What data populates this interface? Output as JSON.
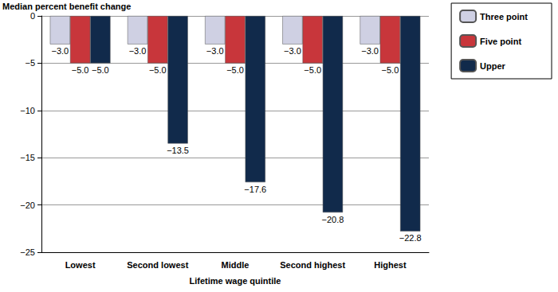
{
  "chart_data": {
    "type": "bar",
    "y_label": "Median percent benefit change",
    "x_label": "Lifetime wage quintile",
    "categories": [
      "Lowest",
      "Second lowest",
      "Middle",
      "Second highest",
      "Highest"
    ],
    "series": [
      {
        "name": "Three point",
        "color": "#cfd0e3",
        "values": [
          -3.0,
          -3.0,
          -3.0,
          -3.0,
          -3.0
        ],
        "value_labels": [
          "−3.0",
          "−3.0",
          "−3.0",
          "−3.0",
          "−3.0"
        ]
      },
      {
        "name": "Five point",
        "color": "#c8363b",
        "values": [
          -5.0,
          -5.0,
          -5.0,
          -5.0,
          -5.0
        ],
        "value_labels": [
          "−5.0",
          "−5.0",
          "−5.0",
          "−5.0",
          "−5.0"
        ]
      },
      {
        "name": "Upper",
        "color": "#112a4b",
        "values": [
          -5.0,
          -13.5,
          -17.6,
          -20.8,
          -22.8
        ],
        "value_labels": [
          "−5.0",
          "−13.5",
          "−17.6",
          "−20.8",
          "−22.8"
        ]
      }
    ],
    "ylim": [
      -25,
      0
    ],
    "yticks": [
      {
        "value": -25,
        "label": "−25"
      },
      {
        "value": -20,
        "label": "−20"
      },
      {
        "value": -15,
        "label": "−15"
      },
      {
        "value": -10,
        "label": "−10"
      },
      {
        "value": -5,
        "label": "−5"
      },
      0
    ],
    "grid": true,
    "legend": "right",
    "data_labels": true
  }
}
